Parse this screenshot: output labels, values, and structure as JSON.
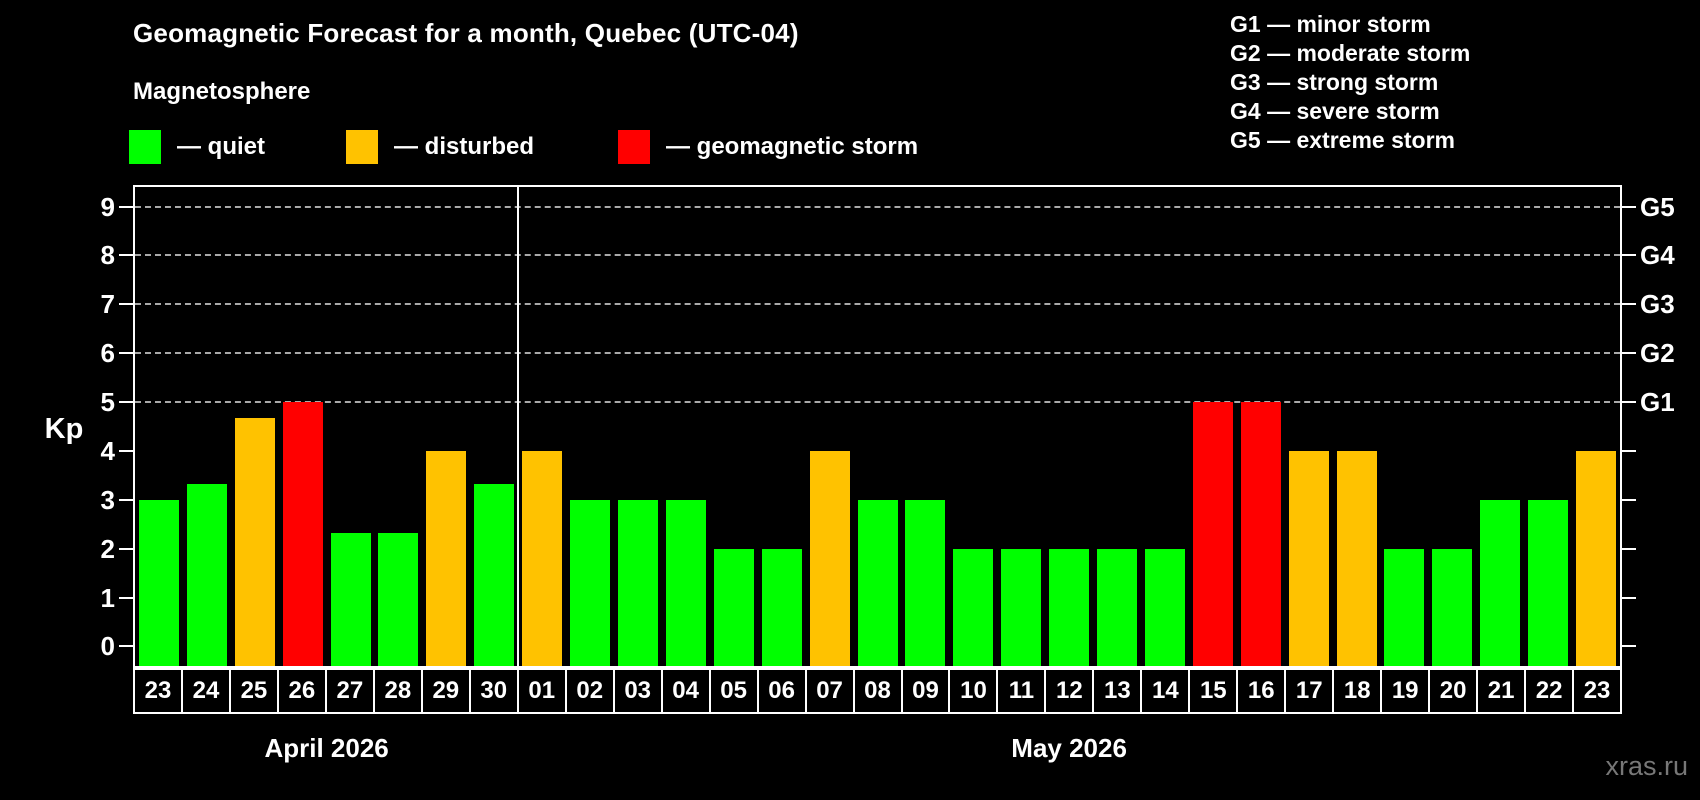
{
  "header": {
    "title": "Geomagnetic Forecast for a month, Quebec (UTC-04)",
    "subtitle": "Magnetosphere"
  },
  "legend": {
    "items": [
      {
        "name": "quiet",
        "label": "— quiet",
        "status": "quiet"
      },
      {
        "name": "disturbed",
        "label": "— disturbed",
        "status": "disturbed"
      },
      {
        "name": "geomagnetic-storm",
        "label": "— geomagnetic storm",
        "status": "storm"
      }
    ]
  },
  "g_scale_legend": {
    "lines": [
      "G1 — minor storm",
      "G2 — moderate storm",
      "G3 — strong storm",
      "G4 — severe storm",
      "G5 — extreme storm"
    ]
  },
  "axes": {
    "y_label": "Kp",
    "y_ticks": [
      0,
      1,
      2,
      3,
      4,
      5,
      6,
      7,
      8,
      9
    ],
    "right_labels": [
      {
        "label": "G5",
        "kp": 9
      },
      {
        "label": "G4",
        "kp": 8
      },
      {
        "label": "G3",
        "kp": 7
      },
      {
        "label": "G2",
        "kp": 6
      },
      {
        "label": "G1",
        "kp": 5
      }
    ]
  },
  "watermark": "xras.ru",
  "colors": {
    "quiet": "#00ff00",
    "disturbed": "#ffc200",
    "storm": "#ff0000",
    "grid": "#aaaaaa",
    "frame": "#ffffff",
    "background": "#000000",
    "watermark": "#777777"
  },
  "chart_data": {
    "type": "bar",
    "title": "Geomagnetic Forecast for a month, Quebec (UTC-04)",
    "ylabel": "Kp",
    "ylim": [
      -0.4,
      9.4
    ],
    "grid": "dashed horizontal at storm levels only",
    "legend_position": "top",
    "gridlines": [
      5,
      6,
      7,
      8,
      9
    ],
    "x_groups": [
      {
        "label": "April 2026",
        "dates": [
          "23",
          "24",
          "25",
          "26",
          "27",
          "28",
          "29",
          "30"
        ]
      },
      {
        "label": "May 2026",
        "dates": [
          "01",
          "02",
          "03",
          "04",
          "05",
          "06",
          "07",
          "08",
          "09",
          "10",
          "11",
          "12",
          "13",
          "14",
          "15",
          "16",
          "17",
          "18",
          "19",
          "20",
          "21",
          "22",
          "23"
        ]
      }
    ],
    "bars": [
      {
        "date": "23",
        "kp": 3.0,
        "status": "quiet"
      },
      {
        "date": "24",
        "kp": 3.33,
        "status": "quiet"
      },
      {
        "date": "25",
        "kp": 4.67,
        "status": "disturbed"
      },
      {
        "date": "26",
        "kp": 5.0,
        "status": "storm"
      },
      {
        "date": "27",
        "kp": 2.33,
        "status": "quiet"
      },
      {
        "date": "28",
        "kp": 2.33,
        "status": "quiet"
      },
      {
        "date": "29",
        "kp": 4.0,
        "status": "disturbed"
      },
      {
        "date": "30",
        "kp": 3.33,
        "status": "quiet"
      },
      {
        "date": "01",
        "kp": 4.0,
        "status": "disturbed"
      },
      {
        "date": "02",
        "kp": 3.0,
        "status": "quiet"
      },
      {
        "date": "03",
        "kp": 3.0,
        "status": "quiet"
      },
      {
        "date": "04",
        "kp": 3.0,
        "status": "quiet"
      },
      {
        "date": "05",
        "kp": 2.0,
        "status": "quiet"
      },
      {
        "date": "06",
        "kp": 2.0,
        "status": "quiet"
      },
      {
        "date": "07",
        "kp": 4.0,
        "status": "disturbed"
      },
      {
        "date": "08",
        "kp": 3.0,
        "status": "quiet"
      },
      {
        "date": "09",
        "kp": 3.0,
        "status": "quiet"
      },
      {
        "date": "10",
        "kp": 2.0,
        "status": "quiet"
      },
      {
        "date": "11",
        "kp": 2.0,
        "status": "quiet"
      },
      {
        "date": "12",
        "kp": 2.0,
        "status": "quiet"
      },
      {
        "date": "13",
        "kp": 2.0,
        "status": "quiet"
      },
      {
        "date": "14",
        "kp": 2.0,
        "status": "quiet"
      },
      {
        "date": "15",
        "kp": 5.0,
        "status": "storm"
      },
      {
        "date": "16",
        "kp": 5.0,
        "status": "storm"
      },
      {
        "date": "17",
        "kp": 4.0,
        "status": "disturbed"
      },
      {
        "date": "18",
        "kp": 4.0,
        "status": "disturbed"
      },
      {
        "date": "19",
        "kp": 2.0,
        "status": "quiet"
      },
      {
        "date": "20",
        "kp": 2.0,
        "status": "quiet"
      },
      {
        "date": "21",
        "kp": 3.0,
        "status": "quiet"
      },
      {
        "date": "22",
        "kp": 3.0,
        "status": "quiet"
      },
      {
        "date": "23",
        "kp": 4.0,
        "status": "disturbed"
      }
    ]
  }
}
